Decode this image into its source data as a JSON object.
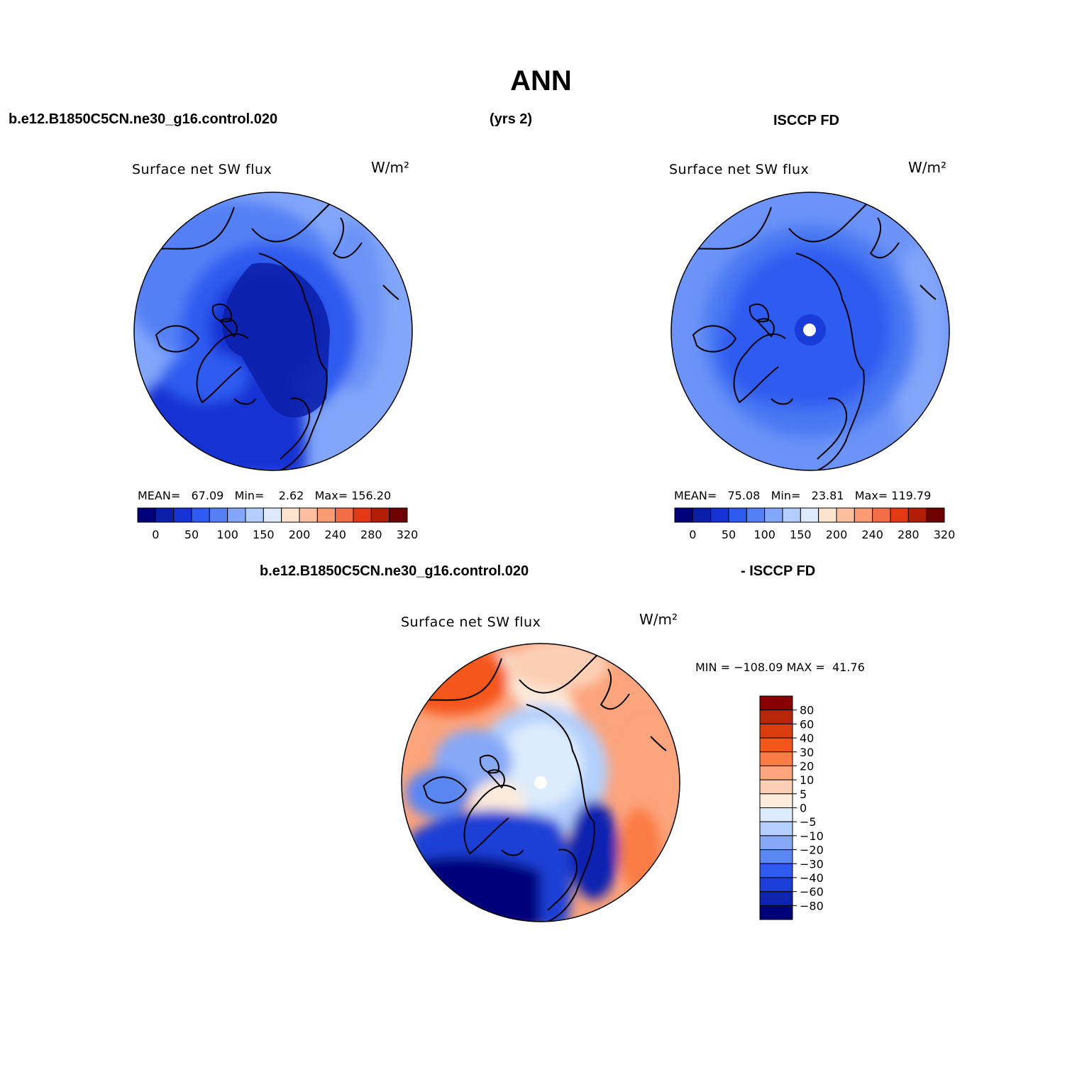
{
  "figure": {
    "title": "ANN"
  },
  "headers": {
    "model_case": "b.e12.B1850C5CN.ne30_g16.control.020",
    "years": "(yrs 2)",
    "obs_name": "ISCCP FD",
    "diff_model": "b.e12.B1850C5CN.ne30_g16.control.020",
    "diff_obs": "- ISCCP FD"
  },
  "panels": [
    {
      "id": "model",
      "title": "Surface net SW flux",
      "units": "W/m²",
      "stats": {
        "mean_label": "MEAN=",
        "mean": "67.09",
        "min_label": "Min=",
        "min": "2.62",
        "max_label": "Max=",
        "max": "156.20"
      }
    },
    {
      "id": "obs",
      "title": "Surface net SW flux",
      "units": "W/m²",
      "stats": {
        "mean_label": "MEAN=",
        "mean": "75.08",
        "min_label": "Min=",
        "min": "23.81",
        "max_label": "Max=",
        "max": "119.79"
      }
    },
    {
      "id": "diff",
      "title": "Surface net SW flux",
      "units": "W/m²",
      "stats": {
        "min_label": "MIN =",
        "min": "−108.09",
        "max_label": "MAX =",
        "max": "41.76"
      }
    }
  ],
  "colorbars": {
    "abs": {
      "colors": [
        "#00007a",
        "#0a1ea8",
        "#1433d2",
        "#2f5cf0",
        "#5580f5",
        "#82a6fa",
        "#b3cdfc",
        "#dde9fd",
        "#fde4cf",
        "#fcbf9f",
        "#fa9a73",
        "#f36e46",
        "#e23a14",
        "#b11e05",
        "#6e0000"
      ],
      "labels": [
        "0",
        "50",
        "100",
        "150",
        "200",
        "240",
        "280",
        "320"
      ]
    },
    "diff": {
      "colors": [
        "#880000",
        "#b8270a",
        "#dc3d0c",
        "#f5571b",
        "#fb7c45",
        "#fca47c",
        "#fdd0b6",
        "#fdebdc",
        "#dcecfc",
        "#b3cffc",
        "#86a9f7",
        "#5a86f2",
        "#2f5cee",
        "#1b3fd6",
        "#0c24b0",
        "#00007a"
      ],
      "labels": [
        "80",
        "60",
        "40",
        "30",
        "20",
        "10",
        "5",
        "0",
        "−5",
        "−10",
        "−20",
        "−30",
        "−40",
        "−60",
        "−80"
      ]
    }
  }
}
